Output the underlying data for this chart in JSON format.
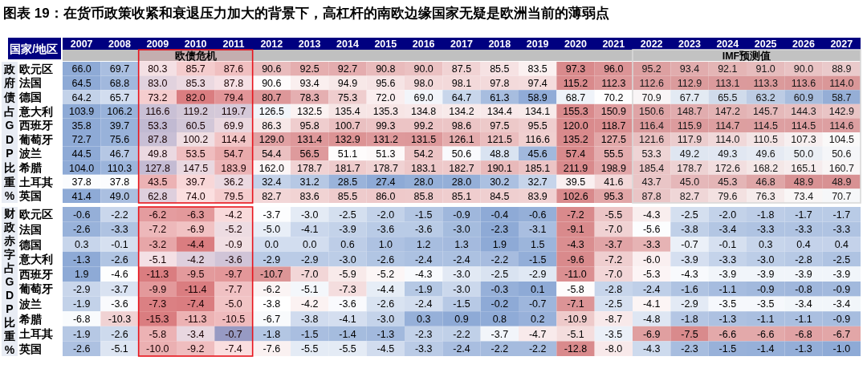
{
  "chart_data": [
    {
      "type": "heatmap",
      "title": "图表 19：在货币政策收紧和衰退压力加大的背景下，高杠杆的南欧边缘国家无疑是欧洲当前的薄弱点",
      "ylabel": "政府债占GDP比重%",
      "annotations": [
        "国家/地区"
      ],
      "categories": [
        "2007",
        "2008",
        "2009",
        "2010",
        "2011",
        "2012",
        "2013",
        "2014",
        "2015",
        "2016",
        "2017",
        "2018",
        "2019",
        "2020",
        "2021",
        "2022",
        "2023",
        "2024",
        "2025",
        "2026",
        "2027"
      ],
      "y_categories": [
        "欧元区",
        "法国",
        "德国",
        "意大利",
        "西班牙",
        "葡萄牙",
        "波兰",
        "希腊",
        "土耳其",
        "英国"
      ],
      "colors": [
        "#8eaad6",
        "#ffffff",
        "#d98a8c"
      ],
      "bands": [
        {
          "axis": "x",
          "from": "2009",
          "to": "2011",
          "label": "欧债危机",
          "color": "#e8141c"
        },
        {
          "axis": "x",
          "from": "2022",
          "to": "2027",
          "label": "IMF预测值",
          "color": "#d9d9d9"
        }
      ],
      "cells": [
        [
          66.0,
          69.7,
          80.3,
          85.7,
          87.6,
          90.6,
          92.5,
          92.7,
          90.8,
          90.0,
          87.5,
          85.5,
          83.5,
          97.3,
          96.0,
          95.2,
          93.4,
          92.1,
          91.0,
          90.0,
          88.9
        ],
        [
          64.5,
          68.8,
          83.0,
          85.3,
          87.8,
          90.6,
          93.4,
          94.9,
          95.6,
          98.0,
          98.1,
          97.8,
          97.4,
          115.2,
          112.3,
          112.6,
          112.9,
          113.1,
          113.3,
          113.6,
          114.0
        ],
        [
          64.2,
          65.7,
          73.2,
          82.0,
          79.4,
          80.7,
          78.3,
          75.3,
          72.0,
          69.0,
          64.7,
          61.3,
          58.9,
          68.7,
          70.2,
          70.9,
          67.7,
          65.5,
          63.2,
          60.9,
          58.7
        ],
        [
          103.9,
          106.2,
          116.6,
          119.2,
          119.7,
          126.5,
          132.5,
          135.4,
          135.3,
          134.8,
          134.2,
          134.4,
          134.1,
          155.3,
          150.9,
          150.6,
          148.7,
          147.2,
          145.7,
          144.3,
          142.9
        ],
        [
          35.8,
          39.7,
          53.3,
          60.5,
          69.9,
          86.3,
          95.8,
          100.7,
          99.3,
          99.2,
          98.6,
          97.5,
          95.5,
          120.0,
          118.7,
          116.4,
          115.9,
          114.7,
          114.5,
          114.5,
          114.6
        ],
        [
          72.7,
          75.6,
          87.8,
          100.2,
          114.4,
          129.0,
          131.4,
          132.9,
          131.2,
          131.5,
          126.1,
          121.5,
          116.6,
          135.2,
          127.5,
          121.6,
          117.9,
          114.0,
          110.5,
          107.3,
          104.5
        ],
        [
          44.5,
          46.7,
          49.8,
          53.5,
          54.7,
          54.4,
          56.5,
          51.1,
          51.3,
          54.2,
          50.6,
          48.8,
          45.6,
          57.4,
          55.5,
          53.3,
          49.2,
          49.3,
          49.6,
          50.0,
          50.6
        ],
        [
          104.0,
          110.3,
          127.8,
          147.5,
          183.9,
          162.0,
          178.7,
          181.7,
          178.7,
          183.1,
          182.7,
          190.1,
          185.1,
          211.9,
          198.9,
          185.4,
          178.7,
          172.6,
          168.2,
          165.1,
          160.7
        ],
        [
          37.8,
          37.8,
          43.5,
          39.7,
          36.2,
          32.4,
          31.2,
          28.5,
          27.4,
          28.0,
          28.0,
          30.2,
          32.7,
          39.5,
          41.6,
          43.7,
          45.0,
          45.3,
          46.8,
          48.9,
          48.9
        ],
        [
          41.4,
          49.0,
          62.8,
          74.0,
          79.5,
          82.7,
          83.6,
          85.5,
          86.0,
          85.8,
          85.1,
          84.5,
          83.9,
          102.6,
          95.3,
          87.8,
          82.7,
          79.6,
          76.3,
          73.4,
          70.7
        ]
      ],
      "cell_labels": [
        [
          "66.0",
          "69.7",
          "80.3",
          "85.7",
          "87.6",
          "90.6",
          "92.5",
          "92.7",
          "90.8",
          "90.0",
          "87.5",
          "85.5",
          "83.5",
          "97.3",
          "96.0",
          "95.2",
          "93.4",
          "92.1",
          "91.0",
          "90.0",
          "88.9"
        ],
        [
          "64.5",
          "68.8",
          "83.0",
          "85.3",
          "87.8",
          "90.6",
          "93.4",
          "94.9",
          "95.6",
          "98.0",
          "98.1",
          "97.8",
          "97.4",
          "115.2",
          "112.3",
          "112.6",
          "112.9",
          "113.1",
          "113.3",
          "113.6",
          "114.0"
        ],
        [
          "64.2",
          "65.7",
          "73.2",
          "82.0",
          "79.4",
          "80.7",
          "78.3",
          "75.3",
          "72.0",
          "69.0",
          "64.7",
          "61.3",
          "58.9",
          "68.7",
          "70.2",
          "70.9",
          "67.7",
          "65.5",
          "63.2",
          "60.9",
          "58.7"
        ],
        [
          "103.9",
          "106.2",
          "116.6",
          "119.2",
          "119.7",
          "126.5",
          "132.5",
          "135.4",
          "135.3",
          "134.8",
          "134.2",
          "134.4",
          "134.1",
          "155.3",
          "150.9",
          "150.6",
          "148.7",
          "147.2",
          "145.7",
          "144.3",
          "142.9"
        ],
        [
          "35.8",
          "39.7",
          "53.3",
          "60.5",
          "69.9",
          "86.3",
          "95.8",
          "100.7",
          "99.3",
          "99.2",
          "98.6",
          "97.5",
          "95.5",
          "120.0",
          "118.7",
          "116.4",
          "115.9",
          "114.7",
          "114.5",
          "114.5",
          "114.6"
        ],
        [
          "72.7",
          "75.6",
          "87.8",
          "100.2",
          "114.4",
          "129.0",
          "131.4",
          "132.9",
          "131.2",
          "131.5",
          "126.1",
          "121.5",
          "116.6",
          "135.2",
          "127.5",
          "121.6",
          "117.9",
          "114.0",
          "110.5",
          "107.3",
          "104.5"
        ],
        [
          "44.5",
          "46.7",
          "49.8",
          "53.5",
          "54.7",
          "54.4",
          "56.5",
          "51.1",
          "51.3",
          "54.2",
          "50.6",
          "48.8",
          "45.6",
          "57.4",
          "55.5",
          "53.3",
          "49.2",
          "49.3",
          "49.6",
          "50.0",
          "50.6"
        ],
        [
          "104.0",
          "110.3",
          "127.8",
          "147.5",
          "183.9",
          "162.0",
          "178.7",
          "181.7",
          "178.7",
          "183.1",
          "182.7",
          "190.1",
          "185.1",
          "211.9",
          "198.9",
          "185.4",
          "178.7",
          "172.6",
          "168.2",
          "165.1",
          "160.7"
        ],
        [
          "37.8",
          "37.8",
          "43.5",
          "39.7",
          "36.2",
          "32.4",
          "31.2",
          "28.5",
          "27.4",
          "28.0",
          "28.0",
          "30.2",
          "32.7",
          "39.5",
          "41.6",
          "43.7",
          "45.0",
          "45.3",
          "46.8",
          "48.9",
          "48.9"
        ],
        [
          "41.4",
          "49.0",
          "62.8",
          "74.0",
          "79.5",
          "82.7",
          "83.6",
          "85.5",
          "86.0",
          "85.8",
          "85.1",
          "84.5",
          "83.9",
          "102.6",
          "95.3",
          "87.8",
          "82.7",
          "79.6",
          "76.3",
          "73.4",
          "70.7"
        ]
      ]
    },
    {
      "type": "heatmap",
      "ylabel": "财政赤字占GDP比重%",
      "tick_labels": "y",
      "categories": [
        "2007",
        "2008",
        "2009",
        "2010",
        "2011",
        "2012",
        "2013",
        "2014",
        "2015",
        "2016",
        "2017",
        "2018",
        "2019",
        "2020",
        "2021",
        "2022",
        "2023",
        "2024",
        "2025",
        "2026",
        "2027"
      ],
      "y_categories": [
        "欧元区",
        "法国",
        "德国",
        "意大利",
        "西班牙",
        "葡萄牙",
        "波兰",
        "希腊",
        "土耳其",
        "英国"
      ],
      "colors": [
        "#d98a8c",
        "#ffffff",
        "#8eaad6"
      ],
      "bands": [
        {
          "axis": "x",
          "from": "2009",
          "to": "2011",
          "color": "#e8141c"
        }
      ],
      "cells": [
        [
          -0.6,
          -2.2,
          -6.2,
          -6.3,
          -4.2,
          -3.7,
          -3.0,
          -2.5,
          -2.0,
          -1.5,
          -0.9,
          -0.4,
          -0.6,
          -7.2,
          -5.5,
          -4.3,
          -2.5,
          -2.0,
          -1.8,
          -1.7,
          -1.7
        ],
        [
          -2.6,
          -3.3,
          -7.2,
          -6.9,
          -5.2,
          -5.0,
          -4.1,
          -3.9,
          -3.6,
          -3.6,
          -3.0,
          -2.3,
          -3.1,
          -9.1,
          -7.0,
          -5.6,
          -3.8,
          -3.4,
          -3.3,
          -3.3,
          -3.3
        ],
        [
          0.3,
          -0.1,
          -3.2,
          -4.4,
          -0.9,
          0.0,
          0.0,
          0.6,
          1.0,
          1.2,
          1.3,
          1.9,
          1.5,
          -4.3,
          -3.7,
          -3.3,
          -0.7,
          -0.1,
          0.3,
          0.4,
          0.4
        ],
        [
          -1.3,
          -2.6,
          -5.1,
          -4.2,
          -3.6,
          -2.9,
          -2.9,
          -3.0,
          -2.6,
          -2.4,
          -2.4,
          -2.2,
          -1.5,
          -9.6,
          -7.2,
          -6.0,
          -3.9,
          -3.3,
          -3.0,
          -2.8,
          -2.5
        ],
        [
          1.9,
          -4.6,
          -11.3,
          -9.5,
          -9.7,
          -10.7,
          -7.0,
          -5.9,
          -5.2,
          -4.3,
          -3.0,
          -2.5,
          -2.9,
          -11.0,
          -7.0,
          -5.3,
          -4.3,
          -3.9,
          -3.9,
          -3.9,
          -3.9
        ],
        [
          -2.9,
          -3.7,
          -9.9,
          -11.4,
          -7.7,
          -6.2,
          -5.1,
          -7.3,
          -4.4,
          -1.9,
          -3.0,
          -0.3,
          0.1,
          -5.8,
          -2.8,
          -2.4,
          -1.6,
          -1.1,
          -0.9,
          -0.8,
          -0.9
        ],
        [
          -1.9,
          -3.6,
          -7.3,
          -7.4,
          -5.0,
          -3.8,
          -4.2,
          -3.6,
          -2.6,
          -2.4,
          -1.5,
          -0.2,
          -0.7,
          -7.1,
          -2.5,
          -4.1,
          -2.9,
          -3.5,
          -3.5,
          -3.4,
          -3.4
        ],
        [
          -6.8,
          -10.3,
          -15.3,
          -11.3,
          -10.5,
          -6.7,
          -3.8,
          -4.1,
          -3.0,
          0.3,
          0.9,
          0.8,
          0.2,
          -10.9,
          -8.7,
          -4.8,
          -1.8,
          -1.3,
          -1.1,
          -1.1,
          -0.9
        ],
        [
          -1.9,
          -2.6,
          -5.8,
          -3.4,
          -0.7,
          -1.8,
          -1.5,
          -1.4,
          -1.3,
          -2.3,
          -2.2,
          -3.7,
          -4.7,
          -5.1,
          -3.5,
          -6.9,
          -7.5,
          -6.6,
          -6.6,
          -6.8,
          -6.7
        ],
        [
          -2.6,
          -5.1,
          -10.0,
          -9.2,
          -7.4,
          -7.6,
          -5.5,
          -5.5,
          -4.5,
          -3.3,
          -2.4,
          -2.2,
          -2.2,
          -12.8,
          -8.0,
          -4.3,
          -2.3,
          -1.5,
          -1.4,
          -1.3,
          -1.0
        ]
      ],
      "cell_labels": [
        [
          "-0.6",
          "-2.2",
          "-6.2",
          "-6.3",
          "-4.2",
          "-3.7",
          "-3.0",
          "-2.5",
          "-2.0",
          "-1.5",
          "-0.9",
          "-0.4",
          "-0.6",
          "-7.2",
          "-5.5",
          "-4.3",
          "-2.5",
          "-2.0",
          "-1.8",
          "-1.7",
          "-1.7"
        ],
        [
          "-2.6",
          "-3.3",
          "-7.2",
          "-6.9",
          "-5.2",
          "-5.0",
          "-4.1",
          "-3.9",
          "-3.6",
          "-3.6",
          "-3.0",
          "-2.3",
          "-3.1",
          "-9.1",
          "-7.0",
          "-5.6",
          "-3.8",
          "-3.4",
          "-3.3",
          "-3.3",
          "-3.3"
        ],
        [
          "0.3",
          "-0.1",
          "-3.2",
          "-4.4",
          "-0.9",
          "0.0",
          "0.0",
          "0.6",
          "1.0",
          "1.2",
          "1.3",
          "1.9",
          "1.5",
          "-4.3",
          "-3.7",
          "-3.3",
          "-0.7",
          "-0.1",
          "0.3",
          "0.4",
          "0.4"
        ],
        [
          "-1.3",
          "-2.6",
          "-5.1",
          "-4.2",
          "-3.6",
          "-2.9",
          "-2.9",
          "-3.0",
          "-2.6",
          "-2.4",
          "-2.4",
          "-2.2",
          "-1.5",
          "-9.6",
          "-7.2",
          "-6.0",
          "-3.9",
          "-3.3",
          "-3.0",
          "-2.8",
          "-2.5"
        ],
        [
          "1.9",
          "-4.6",
          "-11.3",
          "-9.5",
          "-9.7",
          "-10.7",
          "-7.0",
          "-5.9",
          "-5.2",
          "-4.3",
          "-3.0",
          "-2.5",
          "-2.9",
          "-11.0",
          "-7.0",
          "-5.3",
          "-4.3",
          "-3.9",
          "-3.9",
          "-3.9",
          "-3.9"
        ],
        [
          "-2.9",
          "-3.7",
          "-9.9",
          "-11.4",
          "-7.7",
          "-6.2",
          "-5.1",
          "-7.3",
          "-4.4",
          "-1.9",
          "-3.0",
          "-0.3",
          "0.1",
          "-5.8",
          "-2.8",
          "-2.4",
          "-1.6",
          "-1.1",
          "-0.9",
          "-0.8",
          "-0.9"
        ],
        [
          "-1.9",
          "-3.6",
          "-7.3",
          "-7.4",
          "-5.0",
          "-3.8",
          "-4.2",
          "-3.6",
          "-2.6",
          "-2.4",
          "-1.5",
          "-0.2",
          "-0.7",
          "-7.1",
          "-2.5",
          "-4.1",
          "-2.9",
          "-3.5",
          "-3.5",
          "-3.4",
          "-3.4"
        ],
        [
          "-6.8",
          "-10.3",
          "-15.3",
          "-11.3",
          "-10.5",
          "-6.7",
          "-3.8",
          "-4.1",
          "-3.0",
          "0.3",
          "0.9",
          "0.8",
          "0.2",
          "-10.9",
          "-8.7",
          "-4.8",
          "-1.8",
          "-1.3",
          "-1.1",
          "-1.1",
          "-0.9"
        ],
        [
          "-1.9",
          "-2.6",
          "-5.8",
          "-3.4",
          "-0.7",
          "-1.8",
          "-1.5",
          "-1.4",
          "-1.3",
          "-2.3",
          "-2.2",
          "-3.7",
          "-4.7",
          "-5.1",
          "-3.5",
          "-6.9",
          "-7.5",
          "-6.6",
          "-6.6",
          "-6.8",
          "-6.7"
        ],
        [
          "-2.6",
          "-5.1",
          "-10.0",
          "-9.2",
          "-7.4",
          "-7.6",
          "-5.5",
          "-5.5",
          "-4.5",
          "-3.3",
          "-2.4",
          "-2.2",
          "-2.2",
          "-12.8",
          "-8.0",
          "-4.3",
          "-2.3",
          "-1.5",
          "-1.4",
          "-1.3",
          "-1.0"
        ]
      ]
    }
  ]
}
